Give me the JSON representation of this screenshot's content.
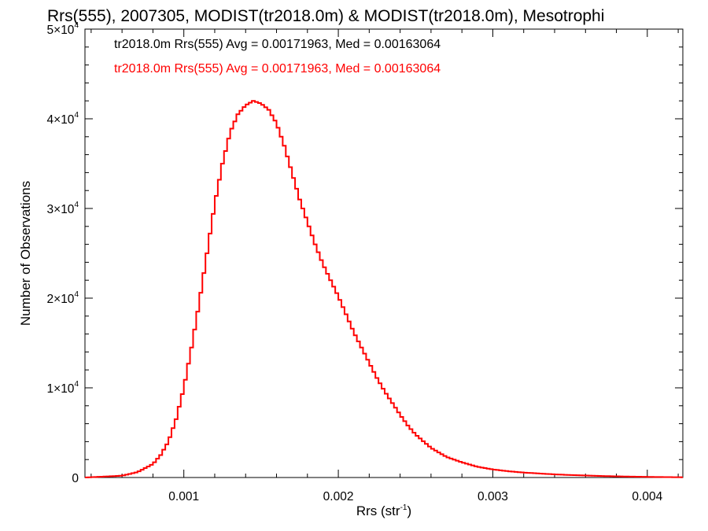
{
  "chart_data": {
    "type": "histogram",
    "title": "Rrs(555), 2007305, MODIST(tr2018.0m) & MODIST(tr2018.0m), Mesotrophi",
    "xlabel_main": "Rrs (str",
    "xlabel_sup": "-1",
    "xlabel_close": ")",
    "ylabel": "Number of Observations",
    "xlim": [
      0.00036,
      0.00423
    ],
    "ylim": [
      0,
      50000
    ],
    "x_ticks": [
      {
        "value": 0.001,
        "label": "0.001"
      },
      {
        "value": 0.002,
        "label": "0.002"
      },
      {
        "value": 0.003,
        "label": "0.003"
      },
      {
        "value": 0.004,
        "label": "0.004"
      }
    ],
    "y_ticks": [
      {
        "value": 0,
        "mant": "0",
        "exp": ""
      },
      {
        "value": 10000,
        "mant": "1×10",
        "exp": "4"
      },
      {
        "value": 20000,
        "mant": "2×10",
        "exp": "4"
      },
      {
        "value": 30000,
        "mant": "3×10",
        "exp": "4"
      },
      {
        "value": 40000,
        "mant": "4×10",
        "exp": "4"
      },
      {
        "value": 50000,
        "mant": "5×10",
        "exp": "4"
      }
    ],
    "legend": [
      {
        "text": "tr2018.0m Rrs(555) Avg = 0.00171963, Med = 0.00163064",
        "color": "#000000"
      },
      {
        "text": "tr2018.0m Rrs(555) Avg = 0.00171963, Med = 0.00163064",
        "color": "#ff0000"
      }
    ],
    "series": [
      {
        "color": "#ff0000",
        "points": [
          [
            0.00036,
            0
          ],
          [
            0.0006,
            200
          ],
          [
            0.0007,
            600
          ],
          [
            0.0008,
            1500
          ],
          [
            0.00085,
            2500
          ],
          [
            0.0009,
            4000
          ],
          [
            0.00095,
            6500
          ],
          [
            0.001,
            10000
          ],
          [
            0.00105,
            14500
          ],
          [
            0.0011,
            19500
          ],
          [
            0.00115,
            25000
          ],
          [
            0.0012,
            30500
          ],
          [
            0.00125,
            35000
          ],
          [
            0.0013,
            38500
          ],
          [
            0.00135,
            40500
          ],
          [
            0.0014,
            41500
          ],
          [
            0.00145,
            42000
          ],
          [
            0.0015,
            41700
          ],
          [
            0.00155,
            41000
          ],
          [
            0.0016,
            39500
          ],
          [
            0.00165,
            37000
          ],
          [
            0.0017,
            34000
          ],
          [
            0.00175,
            31000
          ],
          [
            0.0018,
            28500
          ],
          [
            0.00185,
            26000
          ],
          [
            0.0019,
            23800
          ],
          [
            0.00195,
            22000
          ],
          [
            0.002,
            20200
          ],
          [
            0.00205,
            18200
          ],
          [
            0.0021,
            16200
          ],
          [
            0.00215,
            14500
          ],
          [
            0.0022,
            12800
          ],
          [
            0.00225,
            11100
          ],
          [
            0.0023,
            9600
          ],
          [
            0.00235,
            8300
          ],
          [
            0.0024,
            7000
          ],
          [
            0.00245,
            5800
          ],
          [
            0.0025,
            4800
          ],
          [
            0.0026,
            3300
          ],
          [
            0.0027,
            2300
          ],
          [
            0.0028,
            1700
          ],
          [
            0.0029,
            1200
          ],
          [
            0.003,
            900
          ],
          [
            0.0031,
            700
          ],
          [
            0.0032,
            550
          ],
          [
            0.0033,
            450
          ],
          [
            0.0034,
            350
          ],
          [
            0.0035,
            280
          ],
          [
            0.0036,
            220
          ],
          [
            0.0037,
            170
          ],
          [
            0.0038,
            130
          ],
          [
            0.0039,
            100
          ],
          [
            0.004,
            70
          ],
          [
            0.0041,
            50
          ],
          [
            0.0042,
            30
          ],
          [
            0.00423,
            25
          ]
        ]
      }
    ]
  }
}
